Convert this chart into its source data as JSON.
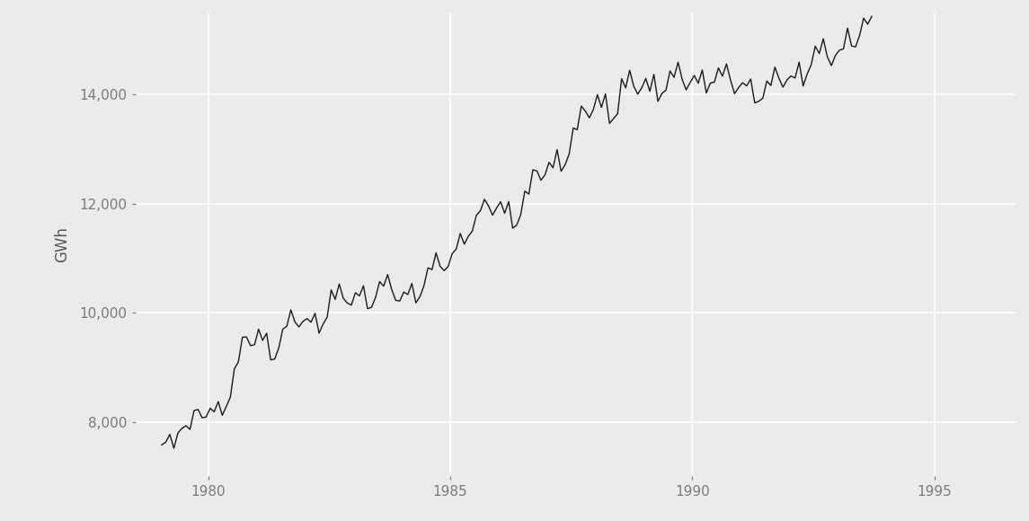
{
  "title": "",
  "ylabel": "GWh",
  "xlabel": "",
  "background_color": "#EBEBEB",
  "line_color": "#1a1a1a",
  "line_width": 1.0,
  "grid_color": "#ffffff",
  "ylim": [
    7000,
    15500
  ],
  "xlim_start": 1978.5,
  "xlim_end": 1996.7,
  "yticks": [
    8000,
    10000,
    12000,
    14000
  ],
  "xticks": [
    1980,
    1985,
    1990,
    1995
  ],
  "start_year": 1979,
  "start_month": 1,
  "values": [
    7580,
    7630,
    7772,
    7518,
    7796,
    7883,
    7931,
    7862,
    8208,
    8228,
    8076,
    8091,
    8251,
    8186,
    8372,
    8122,
    8283,
    8453,
    8973,
    9102,
    9552,
    9556,
    9399,
    9413,
    9699,
    9494,
    9624,
    9137,
    9152,
    9353,
    9699,
    9752,
    10053,
    9833,
    9741,
    9841,
    9893,
    9827,
    9989,
    9626,
    9794,
    9918,
    10419,
    10245,
    10527,
    10265,
    10178,
    10140,
    10366,
    10310,
    10494,
    10075,
    10099,
    10281,
    10570,
    10487,
    10699,
    10427,
    10227,
    10215,
    10379,
    10333,
    10537,
    10181,
    10293,
    10495,
    10824,
    10789,
    11098,
    10850,
    10771,
    10849,
    11082,
    11167,
    11452,
    11256,
    11400,
    11498,
    11787,
    11869,
    12078,
    11958,
    11787,
    11918,
    12034,
    11821,
    12037,
    11549,
    11605,
    11800,
    12228,
    12173,
    12617,
    12597,
    12428,
    12524,
    12755,
    12655,
    12988,
    12591,
    12711,
    12909,
    13384,
    13353,
    13785,
    13694,
    13570,
    13723,
    13996,
    13761,
    14008,
    13468,
    13555,
    13644,
    14288,
    14119,
    14442,
    14150,
    14004,
    14121,
    14290,
    14057,
    14366,
    13872,
    14017,
    14078,
    14429,
    14311,
    14590,
    14279,
    14082,
    14219,
    14348,
    14205,
    14447,
    14026,
    14207,
    14224,
    14484,
    14331,
    14558,
    14262,
    14013,
    14124,
    14214,
    14155,
    14281,
    13844,
    13873,
    13930,
    14245,
    14162,
    14499,
    14295,
    14132,
    14265,
    14337,
    14299,
    14591,
    14153,
    14373,
    14542,
    14882,
    14748,
    15018,
    14688,
    14527,
    14713,
    14809,
    14834,
    15214,
    14888,
    14870,
    15080,
    15397,
    15285,
    15428
  ],
  "ylabel_fontsize": 12,
  "tick_fontsize": 11,
  "tick_color": "#7a7a7a"
}
